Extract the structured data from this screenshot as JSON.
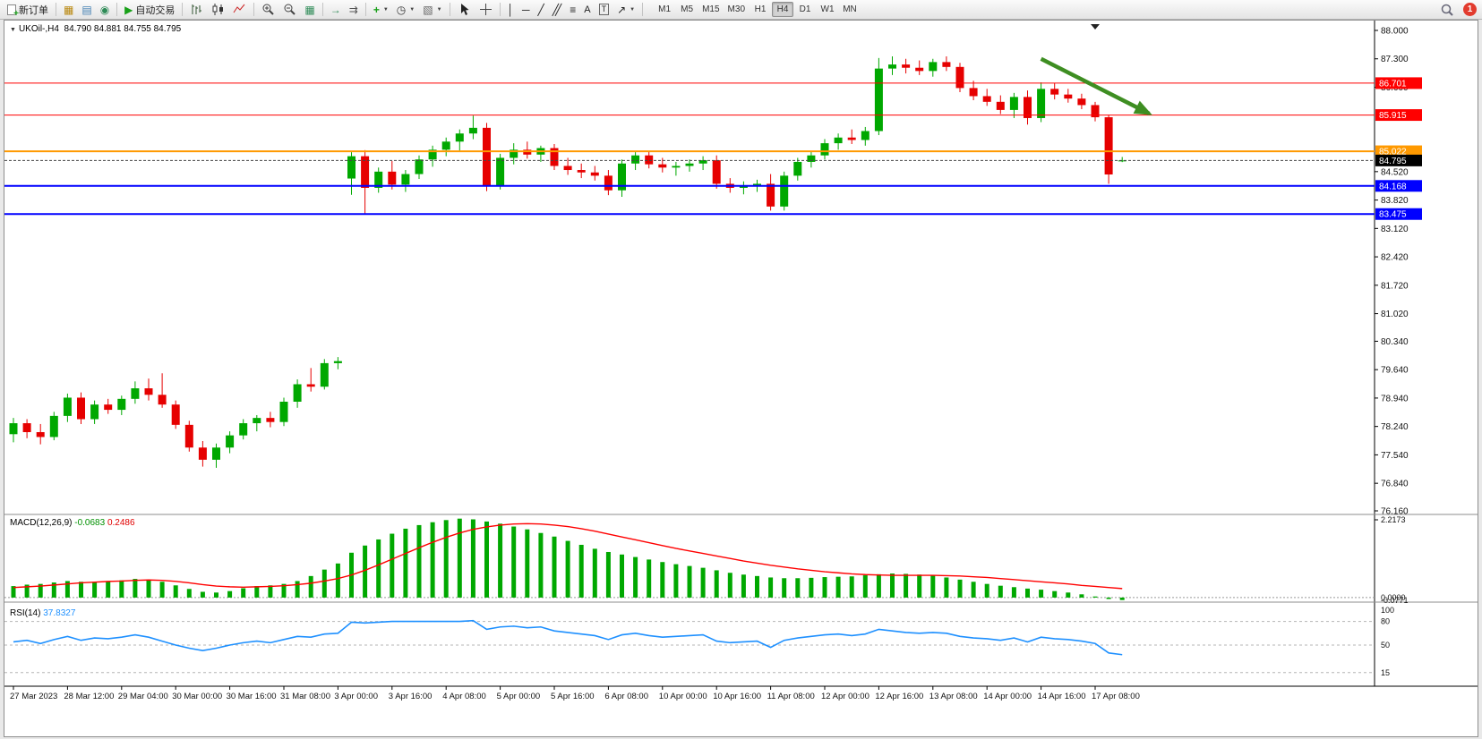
{
  "toolbar": {
    "new_order_label": "新订单",
    "auto_trading_label": "自动交易",
    "text_tool_label": "A",
    "label_tool_label": "T",
    "timeframes": [
      "M1",
      "M5",
      "M15",
      "M30",
      "H1",
      "H4",
      "D1",
      "W1",
      "MN"
    ],
    "active_timeframe": "H4",
    "notification_count": "1"
  },
  "chart": {
    "symbol_label": "UKOil-,H4",
    "ohlc_label": "84.790 84.881 84.755 84.795",
    "price_ticks": [
      "88.000",
      "87.300",
      "86.600",
      "84.520",
      "83.820",
      "83.120",
      "82.420",
      "81.720",
      "81.020",
      "80.340",
      "79.640",
      "78.940",
      "78.240",
      "77.540",
      "76.840",
      "76.160"
    ]
  },
  "chart_data": {
    "type": "candlestick",
    "symbol": "UKOil-",
    "timeframe": "H4",
    "current_ohlc": {
      "open": 84.79,
      "high": 84.881,
      "low": 84.755,
      "close": 84.795
    },
    "up_color": "#00a800",
    "down_color": "#e60000",
    "candles": [
      [
        78.05,
        78.45,
        77.85,
        78.32
      ],
      [
        78.32,
        78.42,
        77.95,
        78.1
      ],
      [
        78.1,
        78.3,
        77.8,
        77.98
      ],
      [
        77.98,
        78.6,
        77.9,
        78.5
      ],
      [
        78.5,
        79.05,
        78.35,
        78.95
      ],
      [
        78.95,
        79.08,
        78.3,
        78.42
      ],
      [
        78.42,
        78.88,
        78.3,
        78.78
      ],
      [
        78.78,
        78.92,
        78.55,
        78.65
      ],
      [
        78.65,
        79.0,
        78.52,
        78.92
      ],
      [
        78.92,
        79.35,
        78.8,
        79.18
      ],
      [
        79.18,
        79.42,
        78.88,
        79.02
      ],
      [
        79.02,
        79.55,
        78.7,
        78.78
      ],
      [
        78.78,
        78.88,
        78.18,
        78.28
      ],
      [
        78.28,
        78.38,
        77.62,
        77.72
      ],
      [
        77.72,
        77.88,
        77.25,
        77.42
      ],
      [
        77.42,
        77.82,
        77.22,
        77.72
      ],
      [
        77.72,
        78.12,
        77.58,
        78.02
      ],
      [
        78.02,
        78.42,
        77.92,
        78.32
      ],
      [
        78.32,
        78.52,
        78.12,
        78.45
      ],
      [
        78.45,
        78.6,
        78.22,
        78.35
      ],
      [
        78.35,
        78.95,
        78.25,
        78.85
      ],
      [
        78.85,
        79.4,
        78.7,
        79.28
      ],
      [
        79.28,
        79.68,
        79.1,
        79.22
      ],
      [
        79.22,
        79.9,
        79.15,
        79.8
      ],
      [
        79.8,
        79.95,
        79.65,
        79.85
      ],
      [
        84.35,
        85.0,
        83.95,
        84.9
      ],
      [
        84.9,
        85.05,
        83.48,
        84.12
      ],
      [
        84.12,
        84.62,
        84.0,
        84.52
      ],
      [
        84.52,
        84.78,
        84.08,
        84.2
      ],
      [
        84.2,
        84.56,
        84.02,
        84.46
      ],
      [
        84.46,
        84.92,
        84.34,
        84.82
      ],
      [
        84.82,
        85.16,
        84.64,
        85.06
      ],
      [
        85.06,
        85.36,
        84.9,
        85.26
      ],
      [
        85.26,
        85.56,
        85.04,
        85.46
      ],
      [
        85.46,
        85.9,
        85.32,
        85.6
      ],
      [
        85.6,
        85.72,
        84.04,
        84.18
      ],
      [
        84.18,
        84.96,
        84.08,
        84.86
      ],
      [
        84.86,
        85.22,
        84.7,
        85.06
      ],
      [
        85.06,
        85.26,
        84.84,
        84.94
      ],
      [
        84.94,
        85.16,
        84.76,
        85.1
      ],
      [
        85.1,
        85.2,
        84.56,
        84.66
      ],
      [
        84.66,
        84.86,
        84.44,
        84.56
      ],
      [
        84.56,
        84.72,
        84.36,
        84.5
      ],
      [
        84.5,
        84.66,
        84.3,
        84.42
      ],
      [
        84.42,
        84.56,
        83.94,
        84.06
      ],
      [
        84.06,
        84.82,
        83.9,
        84.72
      ],
      [
        84.72,
        85.0,
        84.56,
        84.92
      ],
      [
        84.92,
        85.02,
        84.6,
        84.7
      ],
      [
        84.7,
        84.86,
        84.5,
        84.62
      ],
      [
        84.62,
        84.76,
        84.42,
        84.66
      ],
      [
        84.66,
        84.82,
        84.52,
        84.72
      ],
      [
        84.72,
        84.9,
        84.56,
        84.8
      ],
      [
        84.8,
        84.92,
        84.1,
        84.22
      ],
      [
        84.22,
        84.36,
        84.0,
        84.12
      ],
      [
        84.12,
        84.28,
        83.96,
        84.16
      ],
      [
        84.16,
        84.32,
        84.02,
        84.22
      ],
      [
        84.22,
        84.46,
        83.56,
        83.66
      ],
      [
        83.66,
        84.52,
        83.56,
        84.42
      ],
      [
        84.42,
        84.86,
        84.3,
        84.76
      ],
      [
        84.76,
        85.02,
        84.62,
        84.92
      ],
      [
        84.92,
        85.32,
        84.82,
        85.22
      ],
      [
        85.22,
        85.46,
        85.06,
        85.36
      ],
      [
        85.36,
        85.56,
        85.2,
        85.3
      ],
      [
        85.3,
        85.62,
        85.16,
        85.52
      ],
      [
        85.52,
        87.32,
        85.42,
        87.06
      ],
      [
        87.06,
        87.36,
        86.9,
        87.16
      ],
      [
        87.16,
        87.3,
        86.94,
        87.08
      ],
      [
        87.08,
        87.26,
        86.9,
        87.0
      ],
      [
        87.0,
        87.3,
        86.86,
        87.22
      ],
      [
        87.22,
        87.36,
        87.0,
        87.1
      ],
      [
        87.1,
        87.2,
        86.48,
        86.58
      ],
      [
        86.58,
        86.76,
        86.28,
        86.38
      ],
      [
        86.38,
        86.56,
        86.14,
        86.24
      ],
      [
        86.24,
        86.4,
        85.94,
        86.04
      ],
      [
        86.04,
        86.46,
        85.84,
        86.36
      ],
      [
        86.36,
        86.52,
        85.68,
        85.84
      ],
      [
        85.84,
        86.72,
        85.74,
        86.56
      ],
      [
        86.56,
        86.7,
        86.3,
        86.42
      ],
      [
        86.42,
        86.56,
        86.22,
        86.32
      ],
      [
        86.32,
        86.44,
        86.06,
        86.16
      ],
      [
        86.16,
        86.24,
        85.76,
        85.86
      ],
      [
        85.86,
        85.92,
        84.22,
        84.45
      ],
      [
        84.79,
        84.881,
        84.755,
        84.795
      ]
    ],
    "time_labels": [
      "27 Mar 2023",
      "28 Mar 12:00",
      "29 Mar 04:00",
      "30 Mar 00:00",
      "30 Mar 16:00",
      "31 Mar 08:00",
      "3 Apr 00:00",
      "3 Apr 16:00",
      "4 Apr 08:00",
      "5 Apr 00:00",
      "5 Apr 16:00",
      "6 Apr 08:00",
      "10 Apr 00:00",
      "10 Apr 16:00",
      "11 Apr 08:00",
      "12 Apr 00:00",
      "12 Apr 16:00",
      "13 Apr 08:00",
      "14 Apr 00:00",
      "14 Apr 16:00",
      "17 Apr 08:00"
    ],
    "label_step": 4,
    "horizontal_lines": [
      {
        "price": 86.701,
        "label": "86.701",
        "color": "#ff0000",
        "width": 1
      },
      {
        "price": 85.915,
        "label": "85.915",
        "color": "#ff0000",
        "width": 1
      },
      {
        "price": 85.022,
        "label": "85.022",
        "color": "#ff9900",
        "width": 2
      },
      {
        "price": 84.168,
        "label": "84.168",
        "color": "#0000ff",
        "width": 2
      },
      {
        "price": 83.475,
        "label": "83.475",
        "color": "#0000ff",
        "width": 2
      }
    ],
    "bid_line": {
      "price": 84.795,
      "label": "84.795",
      "color": "#000000"
    },
    "arrow_annotation": {
      "from": {
        "bar": 76,
        "price": 87.3
      },
      "to": {
        "bar": 84,
        "price": 85.95
      },
      "color": "#3e8e22"
    },
    "macd": {
      "name": "MACD(12,26,9)",
      "value_main": "-0.0683",
      "value_signal": "0.2486",
      "max": 2.2173,
      "min": -0.0771,
      "axis_labels": [
        "2.2173",
        "0.0000",
        "-0.0771"
      ],
      "histogram_color": "#00a800",
      "signal_color": "#ff0000",
      "histogram": [
        0.32,
        0.36,
        0.38,
        0.42,
        0.46,
        0.44,
        0.42,
        0.44,
        0.48,
        0.52,
        0.5,
        0.44,
        0.34,
        0.24,
        0.16,
        0.14,
        0.18,
        0.26,
        0.32,
        0.34,
        0.38,
        0.46,
        0.6,
        0.78,
        0.95,
        1.25,
        1.45,
        1.62,
        1.78,
        1.92,
        2.02,
        2.1,
        2.16,
        2.2,
        2.18,
        2.12,
        2.06,
        1.98,
        1.9,
        1.8,
        1.7,
        1.58,
        1.47,
        1.36,
        1.27,
        1.2,
        1.13,
        1.06,
        0.99,
        0.93,
        0.88,
        0.83,
        0.76,
        0.69,
        0.64,
        0.6,
        0.56,
        0.54,
        0.54,
        0.55,
        0.57,
        0.58,
        0.59,
        0.62,
        0.65,
        0.67,
        0.66,
        0.64,
        0.61,
        0.56,
        0.5,
        0.44,
        0.38,
        0.33,
        0.29,
        0.25,
        0.22,
        0.18,
        0.14,
        0.09,
        0.03,
        -0.04,
        -0.07
      ],
      "signal": [
        0.28,
        0.3,
        0.32,
        0.35,
        0.38,
        0.41,
        0.43,
        0.45,
        0.46,
        0.48,
        0.49,
        0.48,
        0.45,
        0.41,
        0.36,
        0.32,
        0.3,
        0.29,
        0.3,
        0.31,
        0.33,
        0.36,
        0.4,
        0.46,
        0.53,
        0.63,
        0.76,
        0.91,
        1.07,
        1.23,
        1.39,
        1.54,
        1.68,
        1.8,
        1.9,
        1.97,
        2.02,
        2.05,
        2.06,
        2.05,
        2.02,
        1.98,
        1.92,
        1.85,
        1.77,
        1.69,
        1.61,
        1.53,
        1.45,
        1.37,
        1.3,
        1.23,
        1.16,
        1.09,
        1.02,
        0.96,
        0.9,
        0.85,
        0.8,
        0.76,
        0.72,
        0.69,
        0.66,
        0.64,
        0.63,
        0.62,
        0.62,
        0.62,
        0.62,
        0.61,
        0.6,
        0.58,
        0.56,
        0.53,
        0.5,
        0.47,
        0.44,
        0.41,
        0.38,
        0.34,
        0.31,
        0.28,
        0.25
      ]
    },
    "rsi": {
      "name": "RSI(14)",
      "value": "37.8327",
      "color": "#1e90ff",
      "levels": [
        80,
        50,
        15
      ],
      "axis_labels": [
        "100",
        "80",
        "50",
        "15"
      ],
      "values": [
        54,
        56,
        52,
        57,
        61,
        56,
        59,
        58,
        60,
        63,
        60,
        55,
        50,
        46,
        43,
        46,
        50,
        53,
        55,
        53,
        57,
        61,
        60,
        64,
        65,
        79,
        78,
        79,
        80,
        80,
        80,
        80,
        80,
        80,
        81,
        70,
        73,
        74,
        72,
        73,
        68,
        66,
        64,
        62,
        57,
        63,
        65,
        62,
        60,
        61,
        62,
        63,
        55,
        53,
        54,
        55,
        47,
        56,
        59,
        61,
        63,
        64,
        62,
        64,
        70,
        68,
        66,
        65,
        66,
        65,
        61,
        59,
        58,
        56,
        59,
        54,
        60,
        58,
        57,
        55,
        52,
        40,
        37.8
      ]
    }
  }
}
